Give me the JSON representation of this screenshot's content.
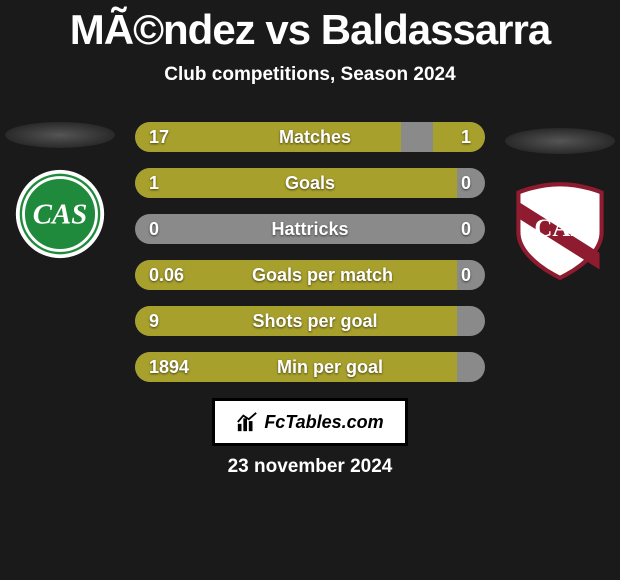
{
  "title": "MÃ©ndez vs Baldassarra",
  "subtitle": "Club competitions, Season 2024",
  "date": "23 november 2024",
  "footer_brand": "FcTables.com",
  "colors": {
    "left_fill": "#a8a02c",
    "right_fill": "#a8a02c",
    "track": "#8a8a8a",
    "crest_left_primary": "#1f8a3b",
    "crest_left_secondary": "#ffffff",
    "crest_right_primary": "#8e1b2f",
    "crest_right_secondary": "#ffffff"
  },
  "crests": {
    "left": {
      "name": "crest-sarmiento",
      "letters": "CAS"
    },
    "right": {
      "name": "crest-platense",
      "letters": "CAP"
    }
  },
  "rows": [
    {
      "label": "Matches",
      "left_text": "17",
      "right_text": "1",
      "left_pct": 76,
      "right_pct": 15
    },
    {
      "label": "Goals",
      "left_text": "1",
      "right_text": "0",
      "left_pct": 92,
      "right_pct": 0
    },
    {
      "label": "Hattricks",
      "left_text": "0",
      "right_text": "0",
      "left_pct": 0,
      "right_pct": 0
    },
    {
      "label": "Goals per match",
      "left_text": "0.06",
      "right_text": "0",
      "left_pct": 92,
      "right_pct": 0
    },
    {
      "label": "Shots per goal",
      "left_text": "9",
      "right_text": "",
      "left_pct": 92,
      "right_pct": 0
    },
    {
      "label": "Min per goal",
      "left_text": "1894",
      "right_text": "",
      "left_pct": 92,
      "right_pct": 0
    }
  ]
}
